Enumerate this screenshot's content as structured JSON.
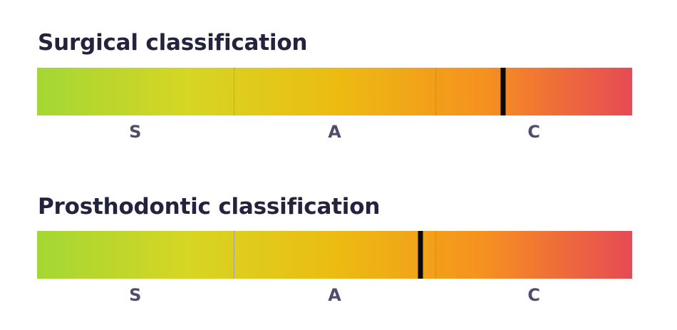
{
  "colors": {
    "title_text": "#23233f",
    "label_text": "#4e4e6c",
    "gradient_stops": [
      "#a3d734",
      "#d6d624",
      "#ecbc12",
      "#f6911f",
      "#e64a54"
    ]
  },
  "chart_data": [
    {
      "type": "bar",
      "title": "Surgical classification",
      "categories": [
        "S",
        "A",
        "C"
      ],
      "zone_bounds": [
        0,
        0.33,
        0.67,
        1
      ],
      "marker_value": 0.783
    },
    {
      "type": "bar",
      "title": "Prosthodontic classification",
      "categories": [
        "S",
        "A",
        "C"
      ],
      "zone_bounds": [
        0,
        0.33,
        0.67,
        1
      ],
      "marker_value": 0.644
    }
  ]
}
